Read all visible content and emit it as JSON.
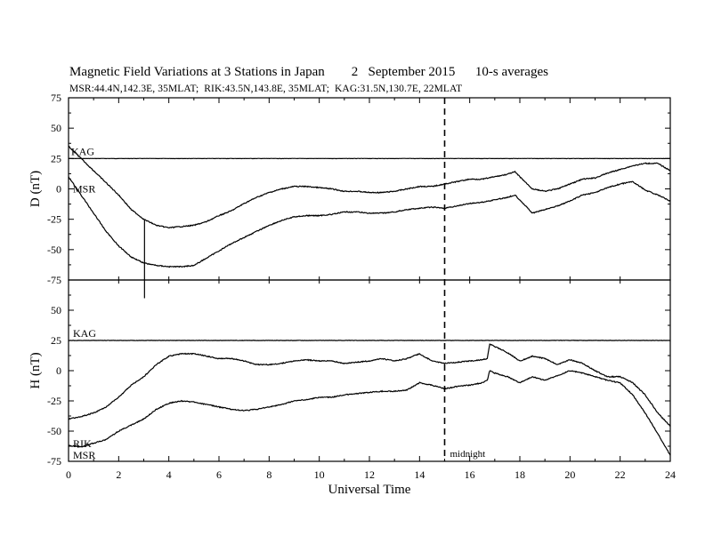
{
  "chart_data": {
    "type": "line",
    "title": "Magnetic Field Variations at 3 Stations in Japan        2   September 2015      10-s averages",
    "subtitle": "MSR:44.4N,142.3E, 35MLAT;  RIK:43.5N,143.8E, 35MLAT;  KAG:31.5N,130.7E, 22MLAT",
    "xlabel": "Universal Time",
    "xlim": [
      0,
      24
    ],
    "x_ticks": [
      "0",
      "2",
      "4",
      "6",
      "8",
      "10",
      "12",
      "14",
      "16",
      "18",
      "20",
      "22",
      "24"
    ],
    "annotation": {
      "text": "midnight",
      "x": 15
    },
    "panels": [
      {
        "ylabel": "D (nT)",
        "ylim": [
          -75,
          75
        ],
        "y_ticks": [
          "75",
          "50",
          "25",
          "0",
          "-25",
          "-50",
          "-75"
        ],
        "series": [
          {
            "name": "KAG",
            "x": [
              0,
              24
            ],
            "values": [
              25,
              25
            ]
          },
          {
            "name": "",
            "x": [
              0,
              0.5,
              1,
              1.5,
              2,
              2.5,
              3,
              3.5,
              4,
              4.5,
              5,
              5.5,
              6,
              6.5,
              7,
              7.5,
              8,
              8.5,
              9,
              9.5,
              10,
              10.5,
              11,
              11.5,
              12,
              12.5,
              13,
              13.5,
              14,
              14.5,
              15,
              15.5,
              16,
              16.5,
              17,
              17.5,
              17.8,
              18,
              18.5,
              19,
              19.5,
              20,
              20.5,
              21,
              21.5,
              22,
              22.5,
              23,
              23.5,
              24
            ],
            "values": [
              35,
              25,
              15,
              5,
              -5,
              -17,
              -25,
              -30,
              -32,
              -31,
              -30,
              -27,
              -22,
              -18,
              -12,
              -7,
              -3,
              0,
              2,
              2,
              1,
              0,
              -2,
              -2,
              -3,
              -3,
              -2,
              0,
              2,
              2,
              4,
              6,
              8,
              8,
              10,
              12,
              14,
              10,
              0,
              -2,
              0,
              4,
              8,
              9,
              13,
              16,
              19,
              21,
              21,
              15
            ]
          },
          {
            "name": "MSR",
            "x": [
              0,
              0.5,
              1,
              1.5,
              2,
              2.5,
              3,
              3.5,
              4,
              4.5,
              5,
              5.5,
              6,
              6.5,
              7,
              7.5,
              8,
              8.5,
              9,
              9.5,
              10,
              10.5,
              11,
              11.5,
              12,
              12.5,
              13,
              13.5,
              14,
              14.5,
              15,
              15.5,
              16,
              16.5,
              17,
              17.5,
              17.8,
              18,
              18.5,
              19,
              19.5,
              20,
              20.5,
              21,
              21.5,
              22,
              22.5,
              23,
              23.5,
              24
            ],
            "values": [
              10,
              -5,
              -20,
              -35,
              -47,
              -56,
              -61,
              -63,
              -64,
              -64,
              -63,
              -57,
              -51,
              -45,
              -40,
              -35,
              -30,
              -26,
              -23,
              -22,
              -22,
              -21,
              -19,
              -19,
              -20,
              -20,
              -19,
              -17,
              -16,
              -15,
              -16,
              -14,
              -12,
              -11,
              -9,
              -7,
              -5,
              -9,
              -20,
              -17,
              -14,
              -10,
              -5,
              -3,
              1,
              4,
              6,
              -1,
              -5,
              -10
            ]
          }
        ]
      },
      {
        "ylabel": "H (nT)",
        "ylim": [
          -75,
          75
        ],
        "y_ticks": [
          "75",
          "50",
          "25",
          "0",
          "-25",
          "-50",
          "-75"
        ],
        "series": [
          {
            "name": "KAG",
            "x": [
              0,
              24
            ],
            "values": [
              25,
              25
            ]
          },
          {
            "name": "RIK",
            "x": [
              0,
              0.5,
              1,
              1.5,
              2,
              2.5,
              3,
              3.5,
              4,
              4.5,
              5,
              5.5,
              6,
              6.5,
              7,
              7.5,
              8,
              8.5,
              9,
              9.5,
              10,
              10.5,
              11,
              11.5,
              12,
              12.5,
              13,
              13.5,
              14,
              14.5,
              15,
              15.5,
              16,
              16.5,
              16.7,
              16.8,
              17,
              17.5,
              18,
              18.5,
              19,
              19.5,
              20,
              20.5,
              21,
              21.5,
              22,
              22.5,
              23,
              23.5,
              24
            ],
            "values": [
              -40,
              -38,
              -35,
              -30,
              -22,
              -12,
              -5,
              5,
              12,
              14,
              14,
              12,
              10,
              10,
              8,
              5,
              5,
              6,
              8,
              9,
              8,
              8,
              6,
              7,
              8,
              10,
              8,
              10,
              14,
              8,
              6,
              7,
              8,
              9,
              10,
              22,
              20,
              15,
              8,
              12,
              10,
              5,
              9,
              6,
              0,
              -5,
              -5,
              -10,
              -20,
              -35,
              -46
            ]
          },
          {
            "name": "MSR",
            "x": [
              0,
              0.5,
              1,
              1.5,
              2,
              2.5,
              3,
              3.5,
              4,
              4.5,
              5,
              5.5,
              6,
              6.5,
              7,
              7.5,
              8,
              8.5,
              9,
              9.5,
              10,
              10.5,
              11,
              11.5,
              12,
              12.5,
              13,
              13.5,
              14,
              14.5,
              15,
              15.5,
              16,
              16.5,
              16.7,
              16.8,
              17,
              17.5,
              18,
              18.5,
              19,
              19.5,
              20,
              20.5,
              21,
              21.5,
              22,
              22.5,
              23,
              23.5,
              24
            ],
            "values": [
              -62,
              -63,
              -60,
              -57,
              -50,
              -45,
              -40,
              -32,
              -27,
              -25,
              -26,
              -28,
              -30,
              -32,
              -33,
              -32,
              -30,
              -28,
              -25,
              -24,
              -22,
              -22,
              -20,
              -19,
              -18,
              -17,
              -17,
              -16,
              -10,
              -12,
              -15,
              -13,
              -12,
              -10,
              -8,
              0,
              -2,
              -5,
              -10,
              -5,
              -8,
              -4,
              0,
              -2,
              -5,
              -8,
              -10,
              -20,
              -35,
              -52,
              -70
            ]
          }
        ]
      }
    ],
    "grid": false,
    "colors": {
      "line": "#000000",
      "background": "#ffffff"
    }
  }
}
